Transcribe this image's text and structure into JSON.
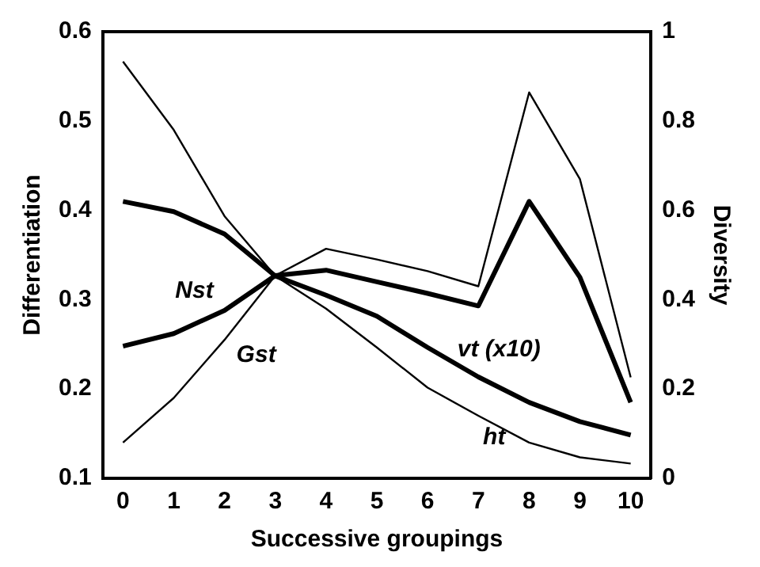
{
  "chart_data": {
    "type": "line",
    "xlabel": "Successive groupings",
    "ylabel": "Differentiation",
    "y2label": "Diversity",
    "x": [
      0,
      1,
      2,
      3,
      4,
      5,
      6,
      7,
      8,
      9,
      10
    ],
    "series": [
      {
        "name": "Nst",
        "color": "#000000",
        "values": [
          0.248,
          0.262,
          0.288,
          0.327,
          0.333,
          0.32,
          0.307,
          0.293,
          0.41,
          0.325,
          0.185
        ]
      },
      {
        "name": "Gst",
        "color": "#000000",
        "values": [
          0.14,
          0.19,
          0.255,
          0.327,
          0.357,
          0.345,
          0.332,
          0.315,
          0.532,
          0.435,
          0.213
        ]
      },
      {
        "name": "vt (x10)",
        "color": "#000000",
        "axis": "y2",
        "values": [
          0.62,
          0.597,
          0.547,
          0.453,
          0.41,
          0.363,
          0.293,
          0.227,
          0.17,
          0.127,
          0.097
        ]
      },
      {
        "name": "ht",
        "color": "#000000",
        "axis": "y2",
        "values": [
          0.933,
          0.78,
          0.587,
          0.453,
          0.38,
          0.293,
          0.203,
          0.14,
          0.08,
          0.047,
          0.033
        ]
      }
    ],
    "xlim": [
      -0.4,
      10.4
    ],
    "xticks": [
      0,
      1,
      2,
      3,
      4,
      5,
      6,
      7,
      8,
      9,
      10
    ],
    "ylim": [
      0.1,
      0.6
    ],
    "yticks": [
      0.1,
      0.2,
      0.3,
      0.4,
      0.5,
      0.6
    ],
    "y2lim": [
      0,
      1
    ],
    "y2ticks": [
      0,
      0.2,
      0.4,
      0.6,
      0.8,
      1
    ],
    "grid": false,
    "legend": false,
    "marker": "none",
    "line_style": "solid"
  }
}
